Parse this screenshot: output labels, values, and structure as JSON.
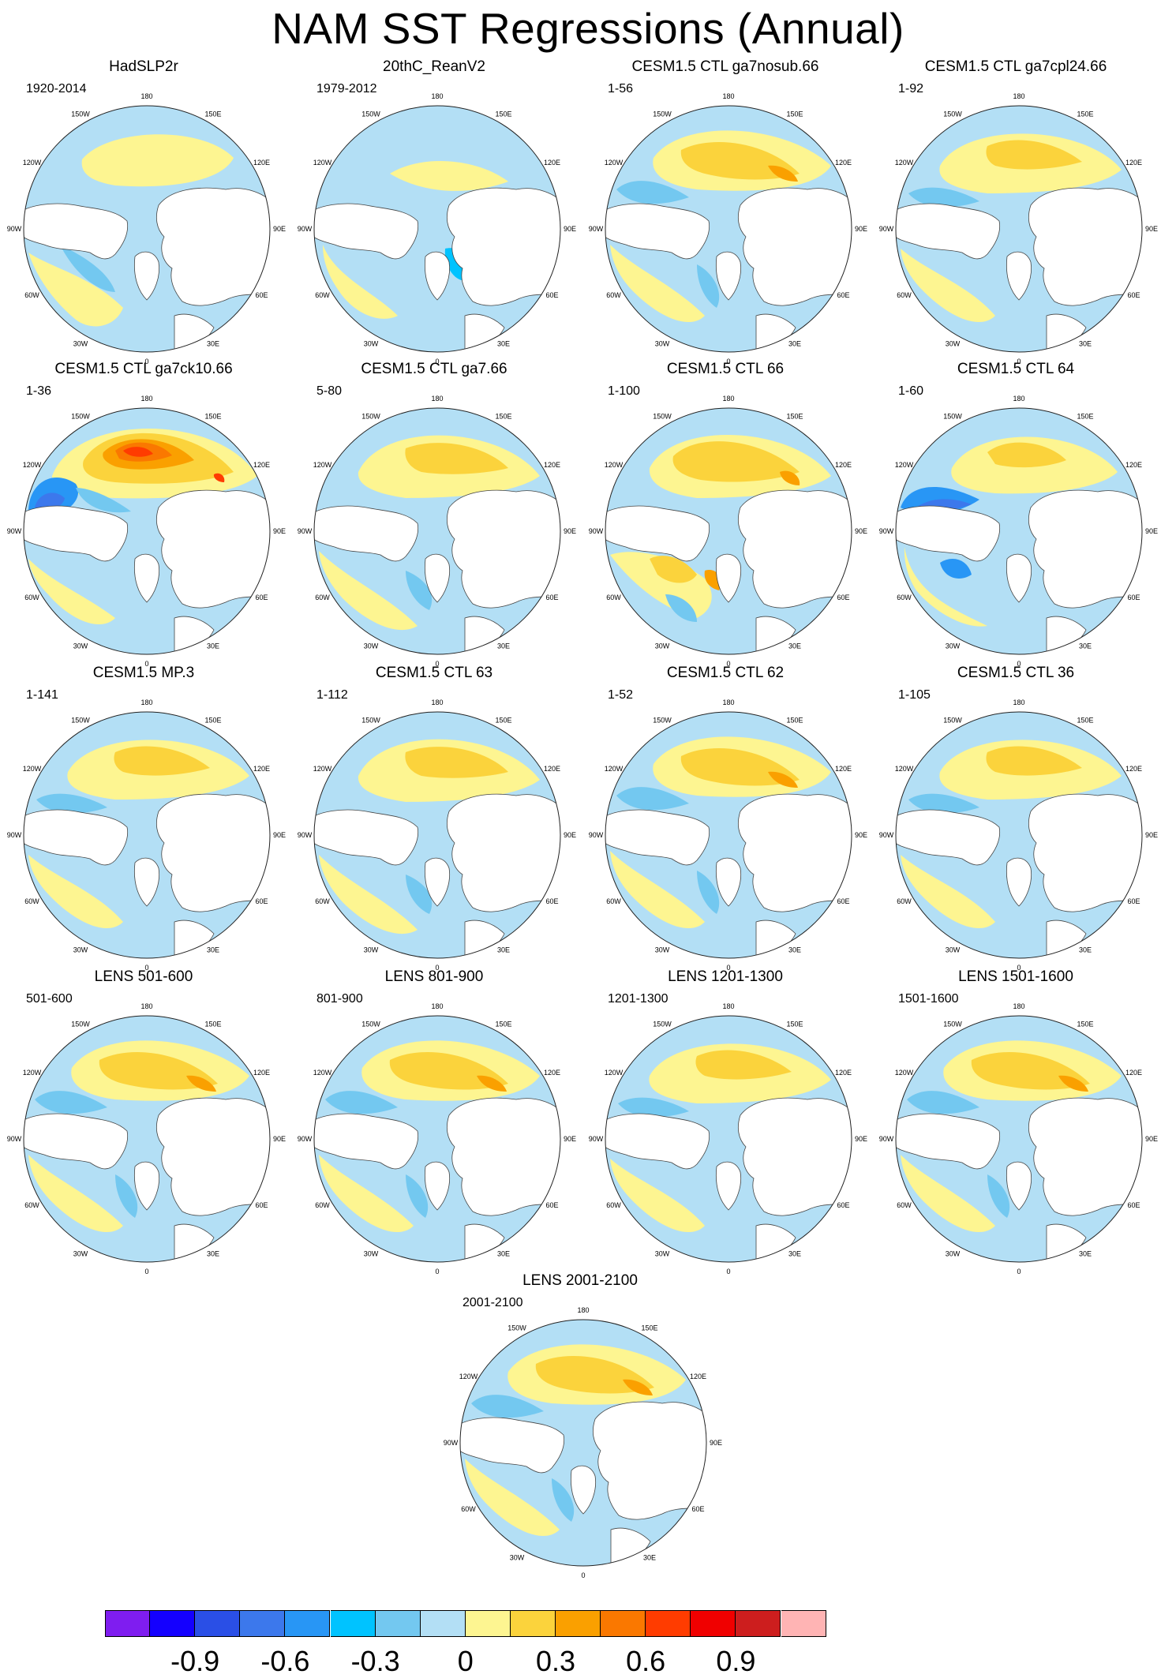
{
  "title": "NAM SST Regressions (Annual)",
  "panels": [
    {
      "title": "HadSLP2r",
      "range": "1920-2014",
      "style": 0
    },
    {
      "title": "20thC_ReanV2",
      "range": "1979-2012",
      "style": 1
    },
    {
      "title": "CESM1.5 CTL ga7nosub.66",
      "range": "1-56",
      "style": 2
    },
    {
      "title": "CESM1.5 CTL ga7cpl24.66",
      "range": "1-92",
      "style": 3
    },
    {
      "title": "CESM1.5 CTL ga7ck10.66",
      "range": "1-36",
      "style": 4
    },
    {
      "title": "CESM1.5 CTL ga7.66",
      "range": "5-80",
      "style": 5
    },
    {
      "title": "CESM1.5 CTL 66",
      "range": "1-100",
      "style": 6
    },
    {
      "title": "CESM1.5 CTL 64",
      "range": "1-60",
      "style": 7
    },
    {
      "title": "CESM1.5 MP.3",
      "range": "1-141",
      "style": 3
    },
    {
      "title": "CESM1.5 CTL 63",
      "range": "1-112",
      "style": 5
    },
    {
      "title": "CESM1.5 CTL 62",
      "range": "1-52",
      "style": 2
    },
    {
      "title": "CESM1.5 CTL 36",
      "range": "1-105",
      "style": 3
    },
    {
      "title": "LENS 501-600",
      "range": "501-600",
      "style": 2
    },
    {
      "title": "LENS 801-900",
      "range": "801-900",
      "style": 2
    },
    {
      "title": "LENS 1201-1300",
      "range": "1201-1300",
      "style": 3
    },
    {
      "title": "LENS 1501-1600",
      "range": "1501-1600",
      "style": 2
    },
    {
      "title": "LENS 2001-2100",
      "range": "2001-2100",
      "style": 2
    }
  ],
  "longitude_labels": [
    "180",
    "150E",
    "120E",
    "90E",
    "60E",
    "30E",
    "0",
    "30W",
    "60W",
    "90W",
    "120W",
    "150W"
  ],
  "colorbar": {
    "colors": [
      "#7f1df0",
      "#1400ff",
      "#2a4fe6",
      "#3c78ec",
      "#2896f5",
      "#00c3ff",
      "#73c8f0",
      "#b3dff5",
      "#fdf591",
      "#fbd33c",
      "#faa000",
      "#fa7800",
      "#ff3c00",
      "#f00000",
      "#cd1e1e",
      "#ffb4b4"
    ],
    "tick_labels": [
      "-0.9",
      "-0.6",
      "-0.3",
      "0",
      "0.3",
      "0.6",
      "0.9"
    ]
  }
}
